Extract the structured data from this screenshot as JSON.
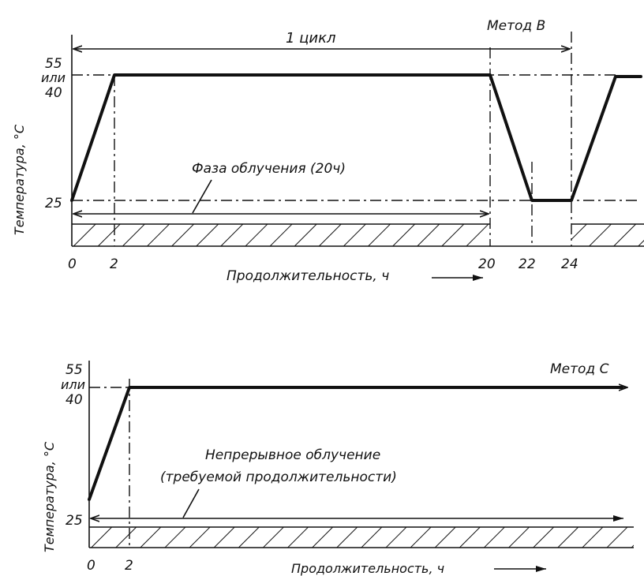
{
  "panel_b": {
    "method_label": "Метод В",
    "cycle_label": "1 цикл",
    "y_tick_55": "55",
    "y_tick_or": "или",
    "y_tick_40": "40",
    "y_tick_25": "25",
    "y_axis_label": "Температура, °С",
    "phase_label": "Фаза облучения (20ч)",
    "x_ticks": [
      "0",
      "2",
      "20",
      "22",
      "24"
    ],
    "x_axis_label": "Продолжительность, ч"
  },
  "panel_c": {
    "method_label": "Метод С",
    "y_tick_55": "55",
    "y_tick_or": "или",
    "y_tick_40": "40",
    "y_tick_25": "25",
    "y_axis_label": "Температура, °С",
    "continuous_line1": "Непрерывное облучение",
    "continuous_line2": "(требуемой продолжительности)",
    "x_ticks": [
      "0",
      "2"
    ],
    "x_axis_label": "Продолжительность, ч"
  }
}
